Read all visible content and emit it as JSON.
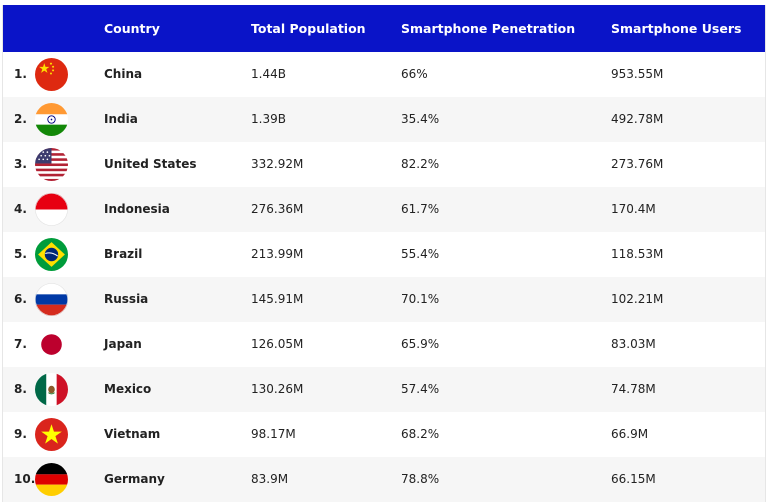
{
  "header": {
    "country": "Country",
    "population": "Total Population",
    "penetration": "Smartphone Penetration",
    "users": "Smartphone Users"
  },
  "rows": [
    {
      "rank": "1.",
      "country": "China",
      "population": "1.44B",
      "penetration": "66%",
      "users": "953.55M",
      "flag": "china-flag-icon"
    },
    {
      "rank": "2.",
      "country": "India",
      "population": "1.39B",
      "penetration": "35.4%",
      "users": "492.78M",
      "flag": "india-flag-icon"
    },
    {
      "rank": "3.",
      "country": "United States",
      "population": "332.92M",
      "penetration": "82.2%",
      "users": "273.76M",
      "flag": "usa-flag-icon"
    },
    {
      "rank": "4.",
      "country": "Indonesia",
      "population": "276.36M",
      "penetration": "61.7%",
      "users": "170.4M",
      "flag": "indonesia-flag-icon"
    },
    {
      "rank": "5.",
      "country": "Brazil",
      "population": "213.99M",
      "penetration": "55.4%",
      "users": "118.53M",
      "flag": "brazil-flag-icon"
    },
    {
      "rank": "6.",
      "country": "Russia",
      "population": "145.91M",
      "penetration": "70.1%",
      "users": "102.21M",
      "flag": "russia-flag-icon"
    },
    {
      "rank": "7.",
      "country": "Japan",
      "population": "126.05M",
      "penetration": "65.9%",
      "users": "83.03M",
      "flag": "japan-flag-icon"
    },
    {
      "rank": "8.",
      "country": "Mexico",
      "population": "130.26M",
      "penetration": "57.4%",
      "users": "74.78M",
      "flag": "mexico-flag-icon"
    },
    {
      "rank": "9.",
      "country": "Vietnam",
      "population": "98.17M",
      "penetration": "68.2%",
      "users": "66.9M",
      "flag": "vietnam-flag-icon"
    },
    {
      "rank": "10.",
      "country": "Germany",
      "population": "83.9M",
      "penetration": "78.8%",
      "users": "66.15M",
      "flag": "germany-flag-icon"
    }
  ],
  "colors": {
    "header_bg": "#0a14c8",
    "alt_row_bg": "#f6f6f6"
  }
}
